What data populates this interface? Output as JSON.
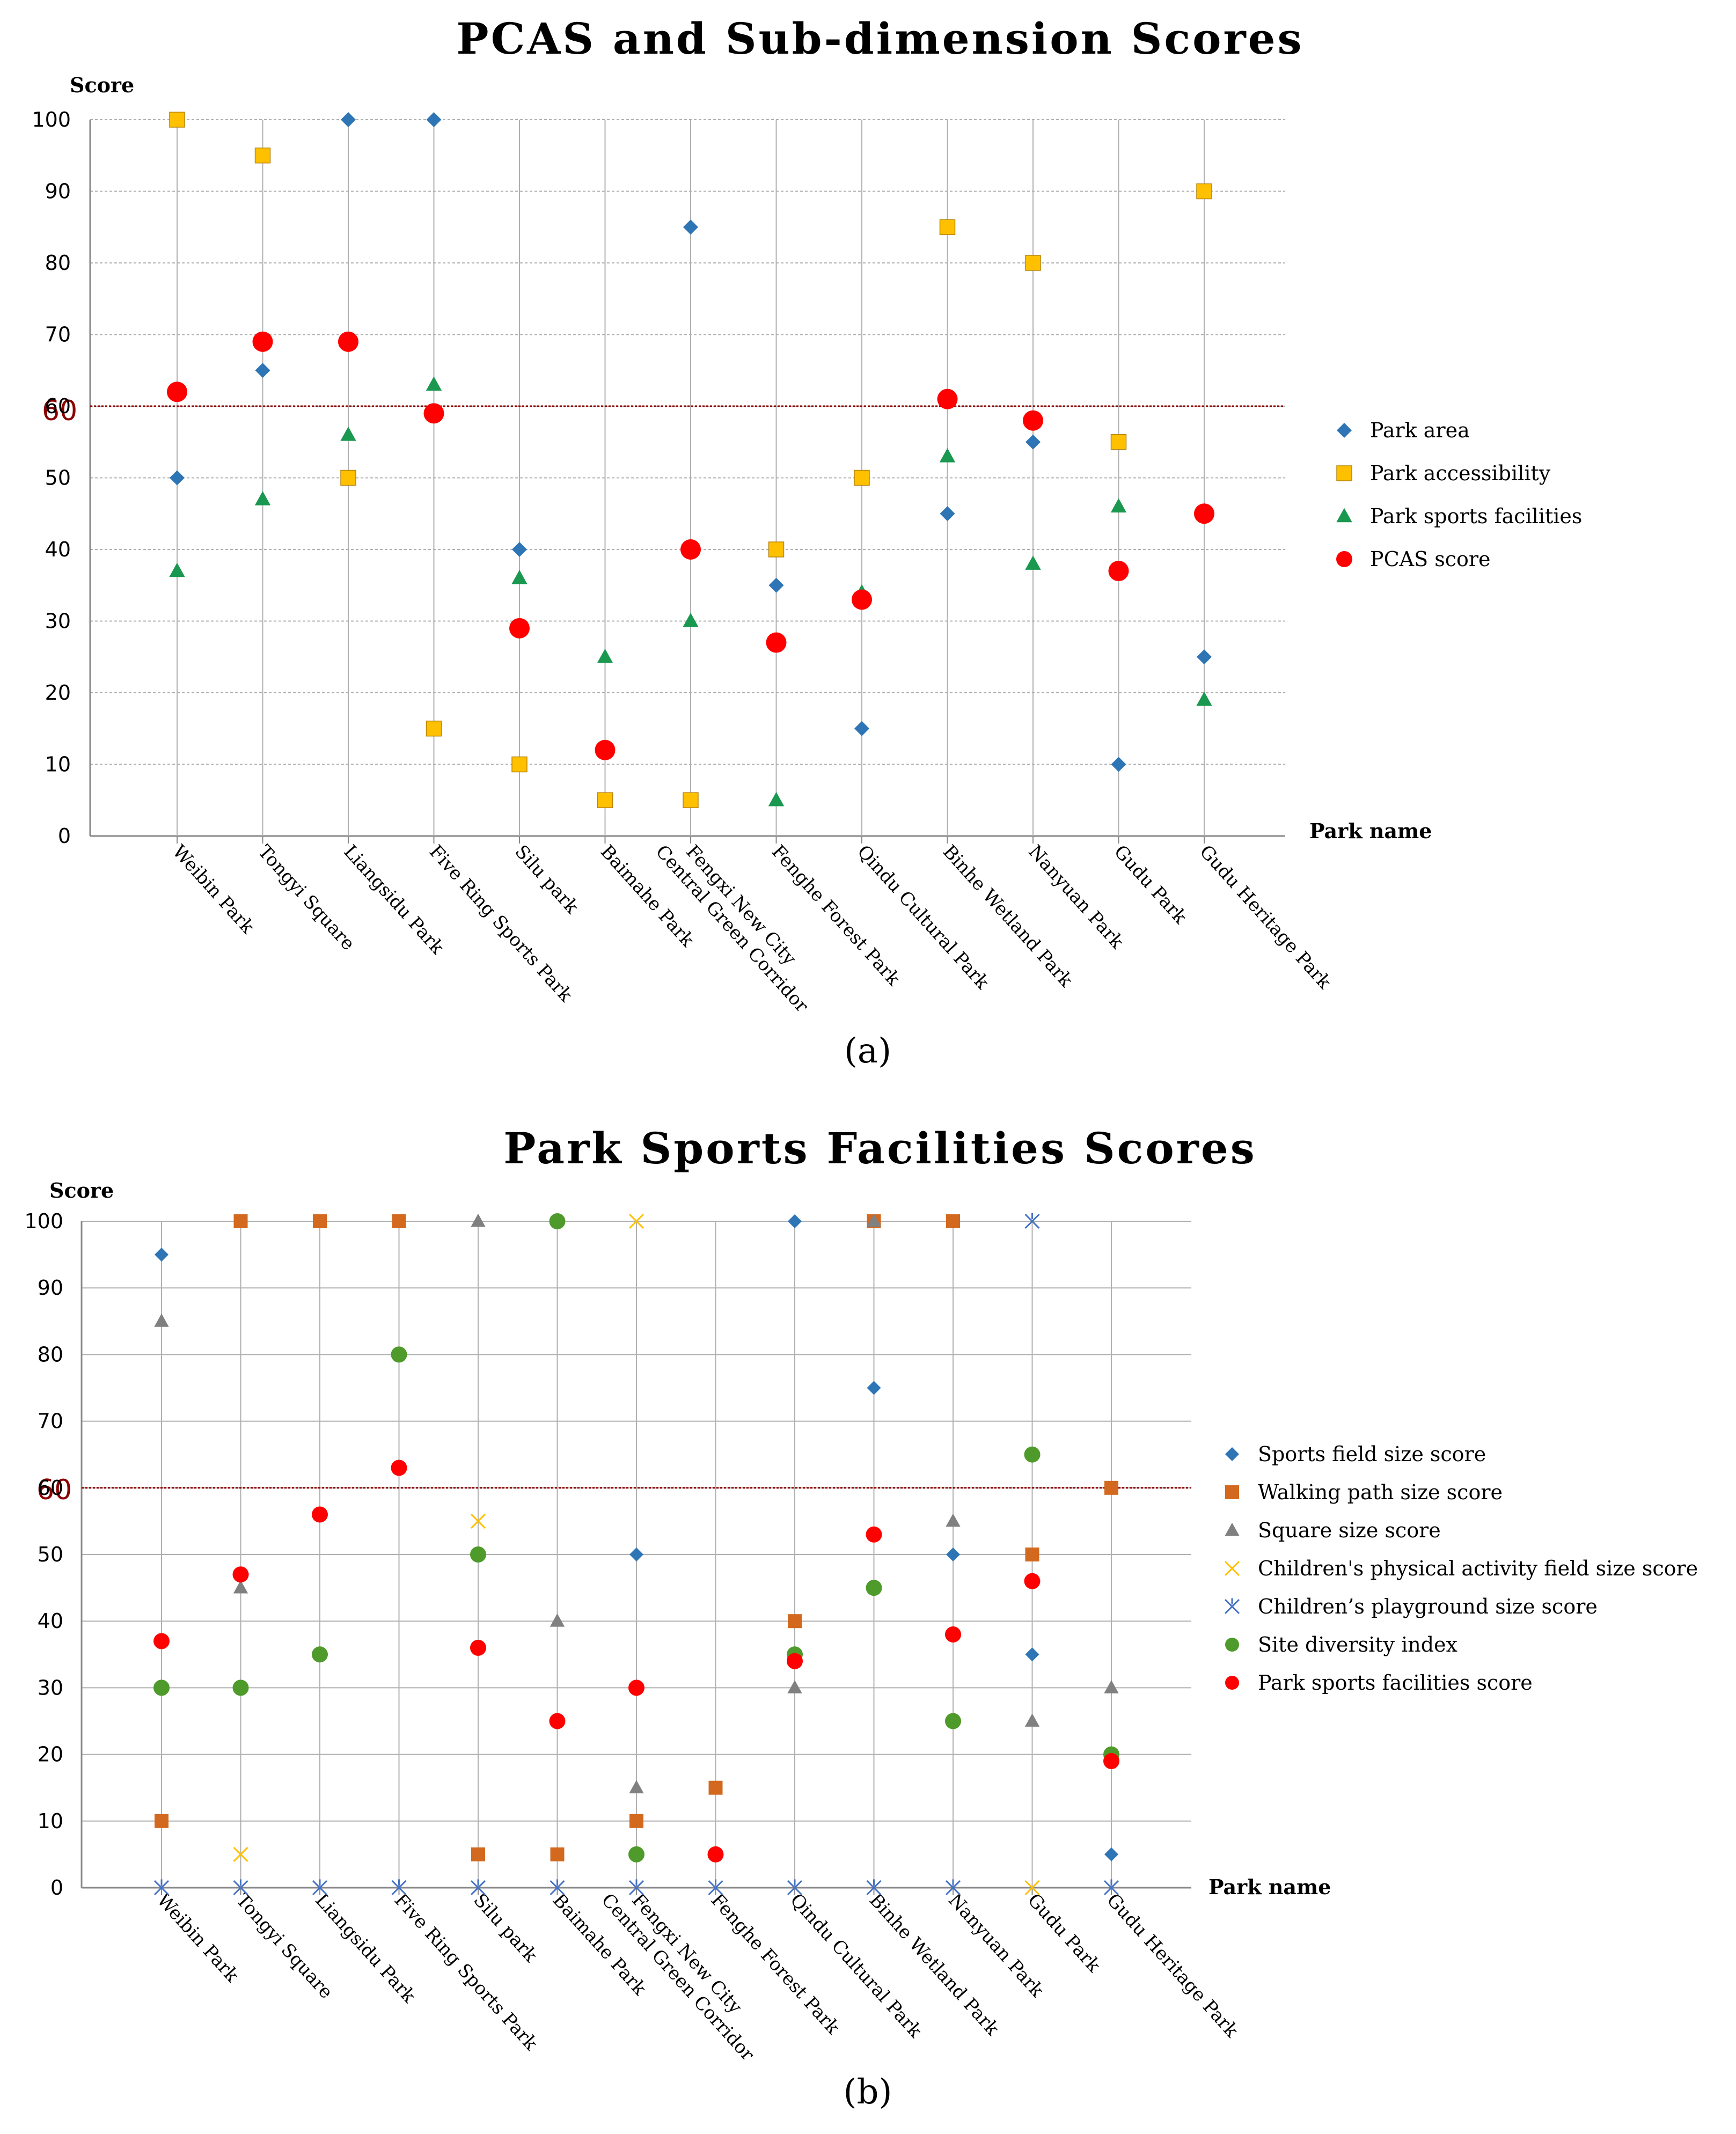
{
  "chart_data": [
    {
      "type": "scatter",
      "title": "PCAS and Sub-dimension Scores",
      "xlabel": "Park name",
      "ylabel": "Score",
      "ylim": [
        0,
        100
      ],
      "yticks": [
        0,
        10,
        20,
        30,
        40,
        50,
        60,
        70,
        80,
        90,
        100
      ],
      "reference_line": {
        "value": 60,
        "label": "60",
        "color": "#8b0000"
      },
      "categories": [
        "Weibin Park",
        "Tongyi Square",
        "Liangsidu Park",
        "Five Ring Sports Park",
        "Silu park",
        "Baimahe Park",
        "Fengxi New City\nCentral Green Corridor",
        "Fenghe Forest Park",
        "Qindu Cultural Park",
        "Binhe Wetland Park",
        "Nanyuan Park",
        "Gudu Park",
        "Gudu Heritage Park"
      ],
      "grid": true,
      "legend_position": "right",
      "series": [
        {
          "name": "Park area",
          "marker": "diamond",
          "color": "#2e75b6",
          "values": [
            50,
            65,
            100,
            100,
            40,
            null,
            85,
            35,
            15,
            45,
            55,
            10,
            25
          ]
        },
        {
          "name": "Park accessibility",
          "marker": "square",
          "color": "#ffc000",
          "values": [
            100,
            95,
            50,
            15,
            10,
            5,
            5,
            40,
            50,
            85,
            80,
            55,
            90
          ]
        },
        {
          "name": "Park sports facilities",
          "marker": "triangle",
          "color": "#1a9850",
          "values": [
            37,
            47,
            56,
            63,
            36,
            25,
            30,
            5,
            34,
            53,
            38,
            46,
            19
          ]
        },
        {
          "name": "PCAS score",
          "marker": "circle",
          "color": "#ff0000",
          "values": [
            62,
            69,
            69,
            59,
            29,
            12,
            40,
            27,
            33,
            61,
            58,
            37,
            45
          ]
        }
      ],
      "caption": "(a)"
    },
    {
      "type": "scatter",
      "title": "Park Sports Facilities Scores",
      "xlabel": "Park name",
      "ylabel": "Score",
      "ylim": [
        0,
        100
      ],
      "yticks": [
        0,
        10,
        20,
        30,
        40,
        50,
        60,
        70,
        80,
        90,
        100
      ],
      "reference_line": {
        "value": 60,
        "label": "60",
        "color": "#8b0000"
      },
      "categories": [
        "Weibin Park",
        "Tongyi Square",
        "Liangsidu Park",
        "Five Ring Sports Park",
        "Silu park",
        "Baimahe Park",
        "Fengxi New City\nCentral Green Corridor",
        "Fenghe Forest Park",
        "Qindu Cultural Park",
        "Binhe Wetland Park",
        "Nanyuan Park",
        "Gudu Park",
        "Gudu Heritage Park"
      ],
      "grid": true,
      "legend_position": "right",
      "series": [
        {
          "name": "Sports field size score",
          "marker": "diamond",
          "color": "#2e75b6",
          "values": [
            95,
            null,
            100,
            100,
            null,
            null,
            50,
            null,
            100,
            75,
            50,
            35,
            5
          ]
        },
        {
          "name": "Walking path size score",
          "marker": "square",
          "color": "#d2691e",
          "values": [
            10,
            100,
            100,
            100,
            5,
            5,
            10,
            15,
            40,
            100,
            100,
            50,
            60
          ]
        },
        {
          "name": "Square size score",
          "marker": "triangle",
          "color": "#808080",
          "values": [
            85,
            45,
            null,
            null,
            100,
            40,
            15,
            null,
            30,
            100,
            55,
            25,
            30
          ]
        },
        {
          "name": "Children's physical activity field size score",
          "marker": "x",
          "color": "#ffc000",
          "values": [
            null,
            5,
            null,
            null,
            55,
            null,
            100,
            null,
            null,
            null,
            null,
            0,
            null
          ]
        },
        {
          "name": "Children’s playground size score",
          "marker": "star",
          "color": "#4472c4",
          "values": [
            0,
            0,
            0,
            0,
            0,
            0,
            0,
            0,
            0,
            0,
            0,
            100,
            0
          ]
        },
        {
          "name": "Site diversity index",
          "marker": "circle",
          "color": "#4e9a2a",
          "values": [
            30,
            30,
            35,
            80,
            50,
            100,
            5,
            null,
            35,
            45,
            25,
            65,
            20
          ]
        },
        {
          "name": "Park sports facilities score",
          "marker": "circle",
          "color": "#ff0000",
          "values": [
            37,
            47,
            56,
            63,
            36,
            25,
            30,
            5,
            34,
            53,
            38,
            46,
            19
          ]
        }
      ],
      "caption": "(b)"
    }
  ]
}
